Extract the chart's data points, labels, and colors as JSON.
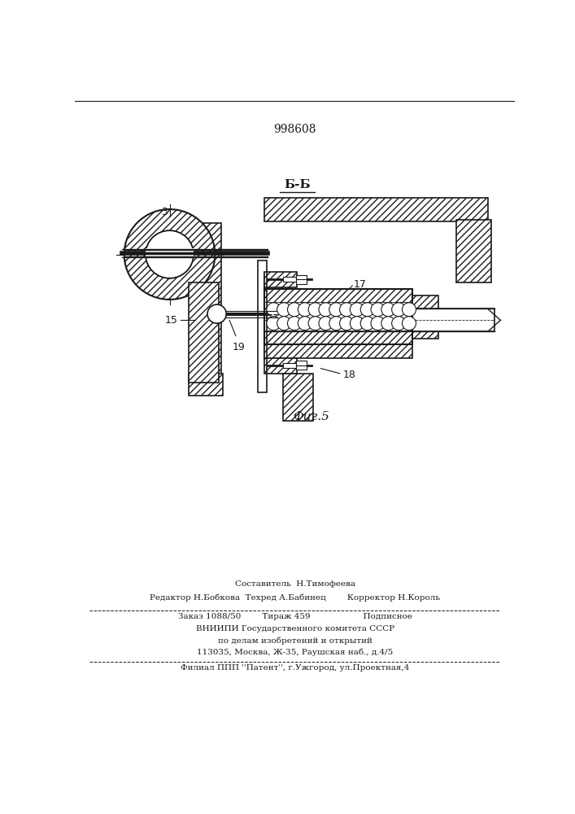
{
  "patent_number": "998608",
  "figure_label": "Фиг.5",
  "section_label": "Б-Б",
  "bg_color": "#ffffff",
  "line_color": "#1a1a1a",
  "footer_lines": [
    "Составитель  Н.Тимофеева",
    "Редактор Н.Бобкова  Техред А.Бабинец        Корректор Н.Король",
    "Заказ 1088/50        Тираж 459                    Подписное",
    "ВНИИПИ Государственного комитета СССР",
    "по делам изобретений и открытий",
    "113035, Москва, Ж-35, Раушская наб., д.4/5",
    "Филиал ППП ''Патент'', г.Ужгород, ул.Проектная,4"
  ]
}
